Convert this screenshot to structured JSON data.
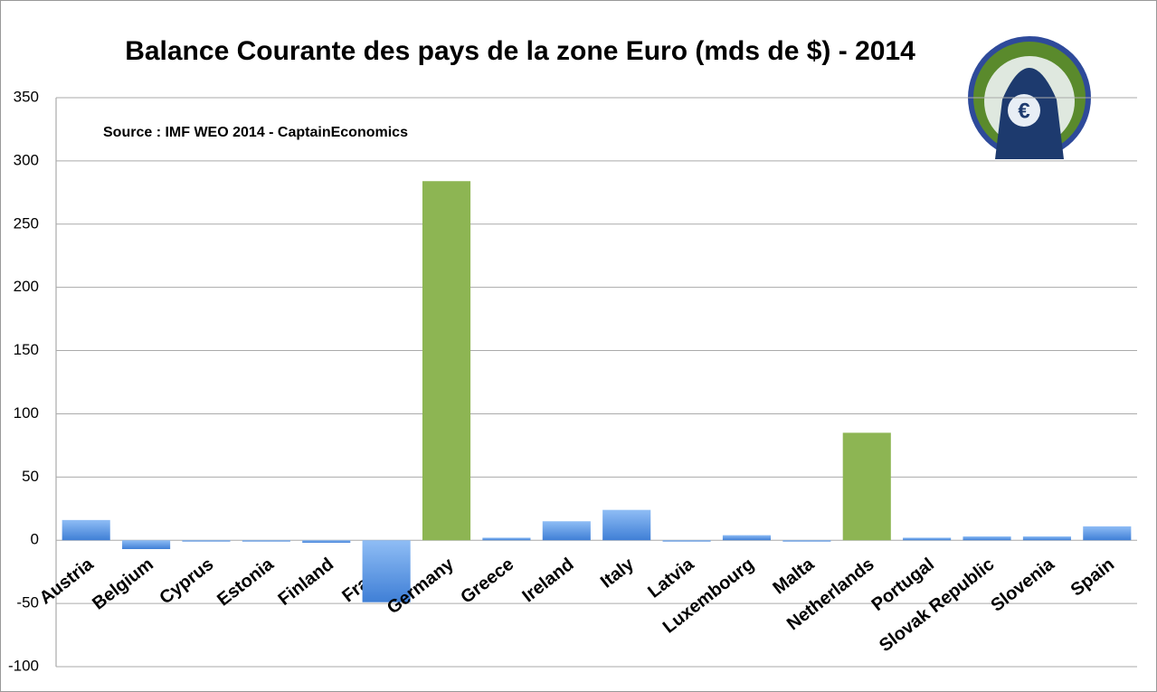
{
  "chart_data": {
    "type": "bar",
    "title": "Balance Courante des pays de la  zone Euro (mds de $) - 2014",
    "subtitle": "Source : IMF WEO 2014 - CaptainEconomics",
    "categories": [
      "Austria",
      "Belgium",
      "Cyprus",
      "Estonia",
      "Finland",
      "France",
      "Germany",
      "Greece",
      "Ireland",
      "Italy",
      "Latvia",
      "Luxembourg",
      "Malta",
      "Netherlands",
      "Portugal",
      "Slovak Republic",
      "Slovenia",
      "Spain"
    ],
    "values": [
      16,
      -7,
      -1,
      -1,
      -2,
      -49,
      284,
      2,
      15,
      24,
      -1,
      4,
      -1,
      85,
      2,
      3,
      3,
      11
    ],
    "colors": [
      "#5b9be8",
      "#5b9be8",
      "#5b9be8",
      "#5b9be8",
      "#5b9be8",
      "#5b9be8",
      "#8db553",
      "#5b9be8",
      "#5b9be8",
      "#5b9be8",
      "#5b9be8",
      "#5b9be8",
      "#5b9be8",
      "#8db553",
      "#5b9be8",
      "#5b9be8",
      "#5b9be8",
      "#5b9be8"
    ],
    "ylim": [
      -100,
      350
    ],
    "yticks": [
      -100,
      -50,
      0,
      50,
      100,
      150,
      200,
      250,
      300,
      350
    ],
    "grid": true
  }
}
